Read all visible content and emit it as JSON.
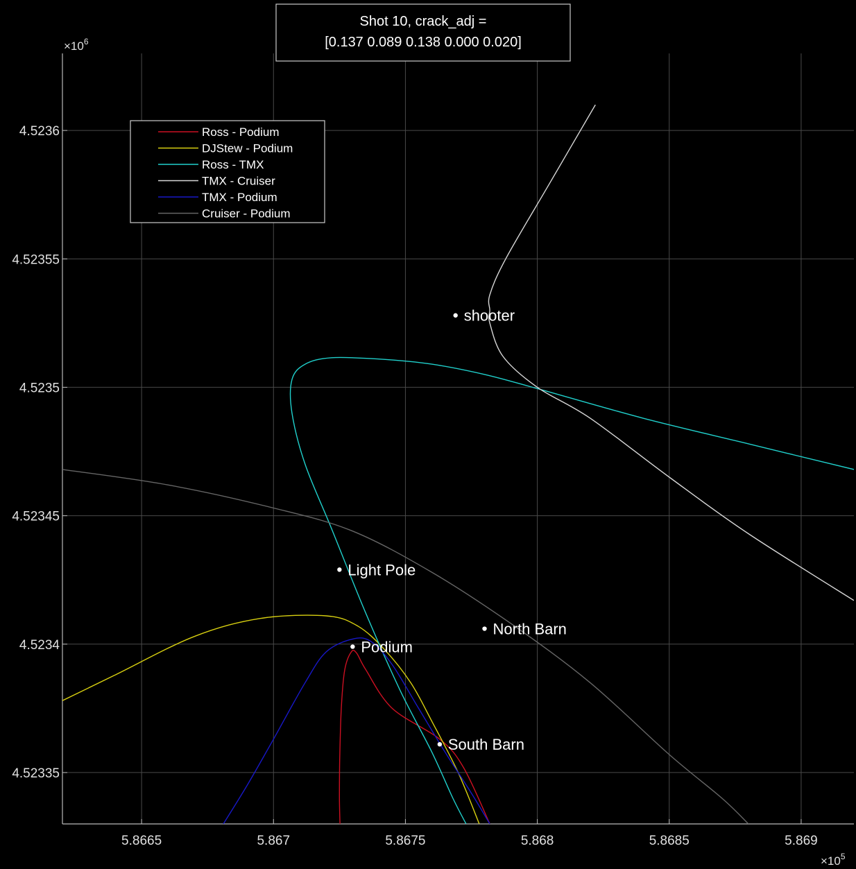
{
  "chart_data": {
    "type": "line",
    "title_lines": [
      "Shot 10, crack_adj =",
      "[0.137 0.089 0.138 0.000 0.020]"
    ],
    "xlabel": "",
    "ylabel": "",
    "x_exponent": {
      "base": "×10",
      "power": "5"
    },
    "y_exponent": {
      "base": "×10",
      "power": "6"
    },
    "xlim": [
      586620,
      586920
    ],
    "ylim": [
      4523330,
      4523630
    ],
    "x_ticks": [
      {
        "value": 586650,
        "label": "5.8665"
      },
      {
        "value": 586700,
        "label": "5.867"
      },
      {
        "value": 586750,
        "label": "5.8675"
      },
      {
        "value": 586800,
        "label": "5.868"
      },
      {
        "value": 586850,
        "label": "5.8685"
      },
      {
        "value": 586900,
        "label": "5.869"
      }
    ],
    "y_ticks": [
      {
        "value": 4523350,
        "label": "4.52335"
      },
      {
        "value": 4523400,
        "label": "4.5234"
      },
      {
        "value": 4523450,
        "label": "4.52345"
      },
      {
        "value": 4523500,
        "label": "4.5235"
      },
      {
        "value": 4523550,
        "label": "4.52355"
      },
      {
        "value": 4523600,
        "label": "4.5236"
      }
    ],
    "grid": true,
    "background": "#000000",
    "grid_color": "#4a4a4a",
    "legend_position": "top-left",
    "series": [
      {
        "name": "Ross - Podium",
        "color": "#cc1022",
        "points": [
          [
            586725.2,
            4523330
          ],
          [
            586725.0,
            4523340
          ],
          [
            586725.1,
            4523355
          ],
          [
            586725.7,
            4523375
          ],
          [
            586727.0,
            4523390
          ],
          [
            586729.5,
            4523397
          ],
          [
            586731.5,
            4523396.5
          ],
          [
            586735,
            4523390
          ],
          [
            586745,
            4523375
          ],
          [
            586763,
            4523363
          ],
          [
            586772,
            4523352
          ],
          [
            586782,
            4523330
          ]
        ]
      },
      {
        "name": "DJStew - Podium",
        "color": "#d8d010",
        "points": [
          [
            586620,
            4523378
          ],
          [
            586640,
            4523388
          ],
          [
            586670,
            4523403
          ],
          [
            586695,
            4523410
          ],
          [
            586720,
            4523411
          ],
          [
            586732,
            4523407
          ],
          [
            586742,
            4523398
          ],
          [
            586752,
            4523385
          ],
          [
            586760,
            4523370
          ],
          [
            586770,
            4523350
          ],
          [
            586778,
            4523330
          ]
        ]
      },
      {
        "name": "Ross - TMX",
        "color": "#20d0cc",
        "points": [
          [
            586920,
            4523468
          ],
          [
            586880,
            4523478
          ],
          [
            586840,
            4523488
          ],
          [
            586800,
            4523499.5
          ],
          [
            586780,
            4523505
          ],
          [
            586760,
            4523509
          ],
          [
            586740,
            4523511
          ],
          [
            586722,
            4523511.5
          ],
          [
            586712,
            4523509
          ],
          [
            586707,
            4523503
          ],
          [
            586707,
            4523490
          ],
          [
            586712,
            4523470
          ],
          [
            586722,
            4523445
          ],
          [
            586735,
            4523412
          ],
          [
            586748,
            4523382
          ],
          [
            586760,
            4523358
          ],
          [
            586768,
            4523340
          ],
          [
            586773,
            4523330
          ]
        ]
      },
      {
        "name": "TMX - Cruiser",
        "color": "#d8d8d8",
        "points": [
          [
            586822,
            4523610
          ],
          [
            586805,
            4523580
          ],
          [
            586788,
            4523550
          ],
          [
            586782,
            4523536
          ],
          [
            586782,
            4523530
          ],
          [
            586782,
            4523525
          ],
          [
            586787,
            4523512
          ],
          [
            586800,
            4523500
          ],
          [
            586820,
            4523488
          ],
          [
            586850,
            4523465
          ],
          [
            586880,
            4523443
          ],
          [
            586920,
            4523417
          ]
        ]
      },
      {
        "name": "TMX - Podium",
        "color": "#1818c8",
        "points": [
          [
            586681,
            4523330
          ],
          [
            586690,
            4523345
          ],
          [
            586700,
            4523363
          ],
          [
            586712,
            4523385
          ],
          [
            586720,
            4523397
          ],
          [
            586730,
            4523402
          ],
          [
            586737,
            4523401
          ],
          [
            586745,
            4523392
          ],
          [
            586755,
            4523375
          ],
          [
            586765,
            4523358
          ],
          [
            586775,
            4523342
          ],
          [
            586782,
            4523330
          ]
        ]
      },
      {
        "name": "Cruiser - Podium",
        "color": "#666666",
        "points": [
          [
            586620,
            4523468
          ],
          [
            586660,
            4523462
          ],
          [
            586700,
            4523453
          ],
          [
            586730,
            4523444
          ],
          [
            586760,
            4523428
          ],
          [
            586790,
            4523408
          ],
          [
            586820,
            4523385
          ],
          [
            586850,
            4523357
          ],
          [
            586870,
            4523340
          ],
          [
            586880,
            4523330
          ]
        ]
      }
    ],
    "annotations": [
      {
        "label": "shooter",
        "x": 586769,
        "y": 4523528
      },
      {
        "label": "Light Pole",
        "x": 586725,
        "y": 4523429
      },
      {
        "label": "North Barn",
        "x": 586780,
        "y": 4523406
      },
      {
        "label": "Podium",
        "x": 586730,
        "y": 4523399
      },
      {
        "label": "South Barn",
        "x": 586763,
        "y": 4523361
      }
    ]
  }
}
